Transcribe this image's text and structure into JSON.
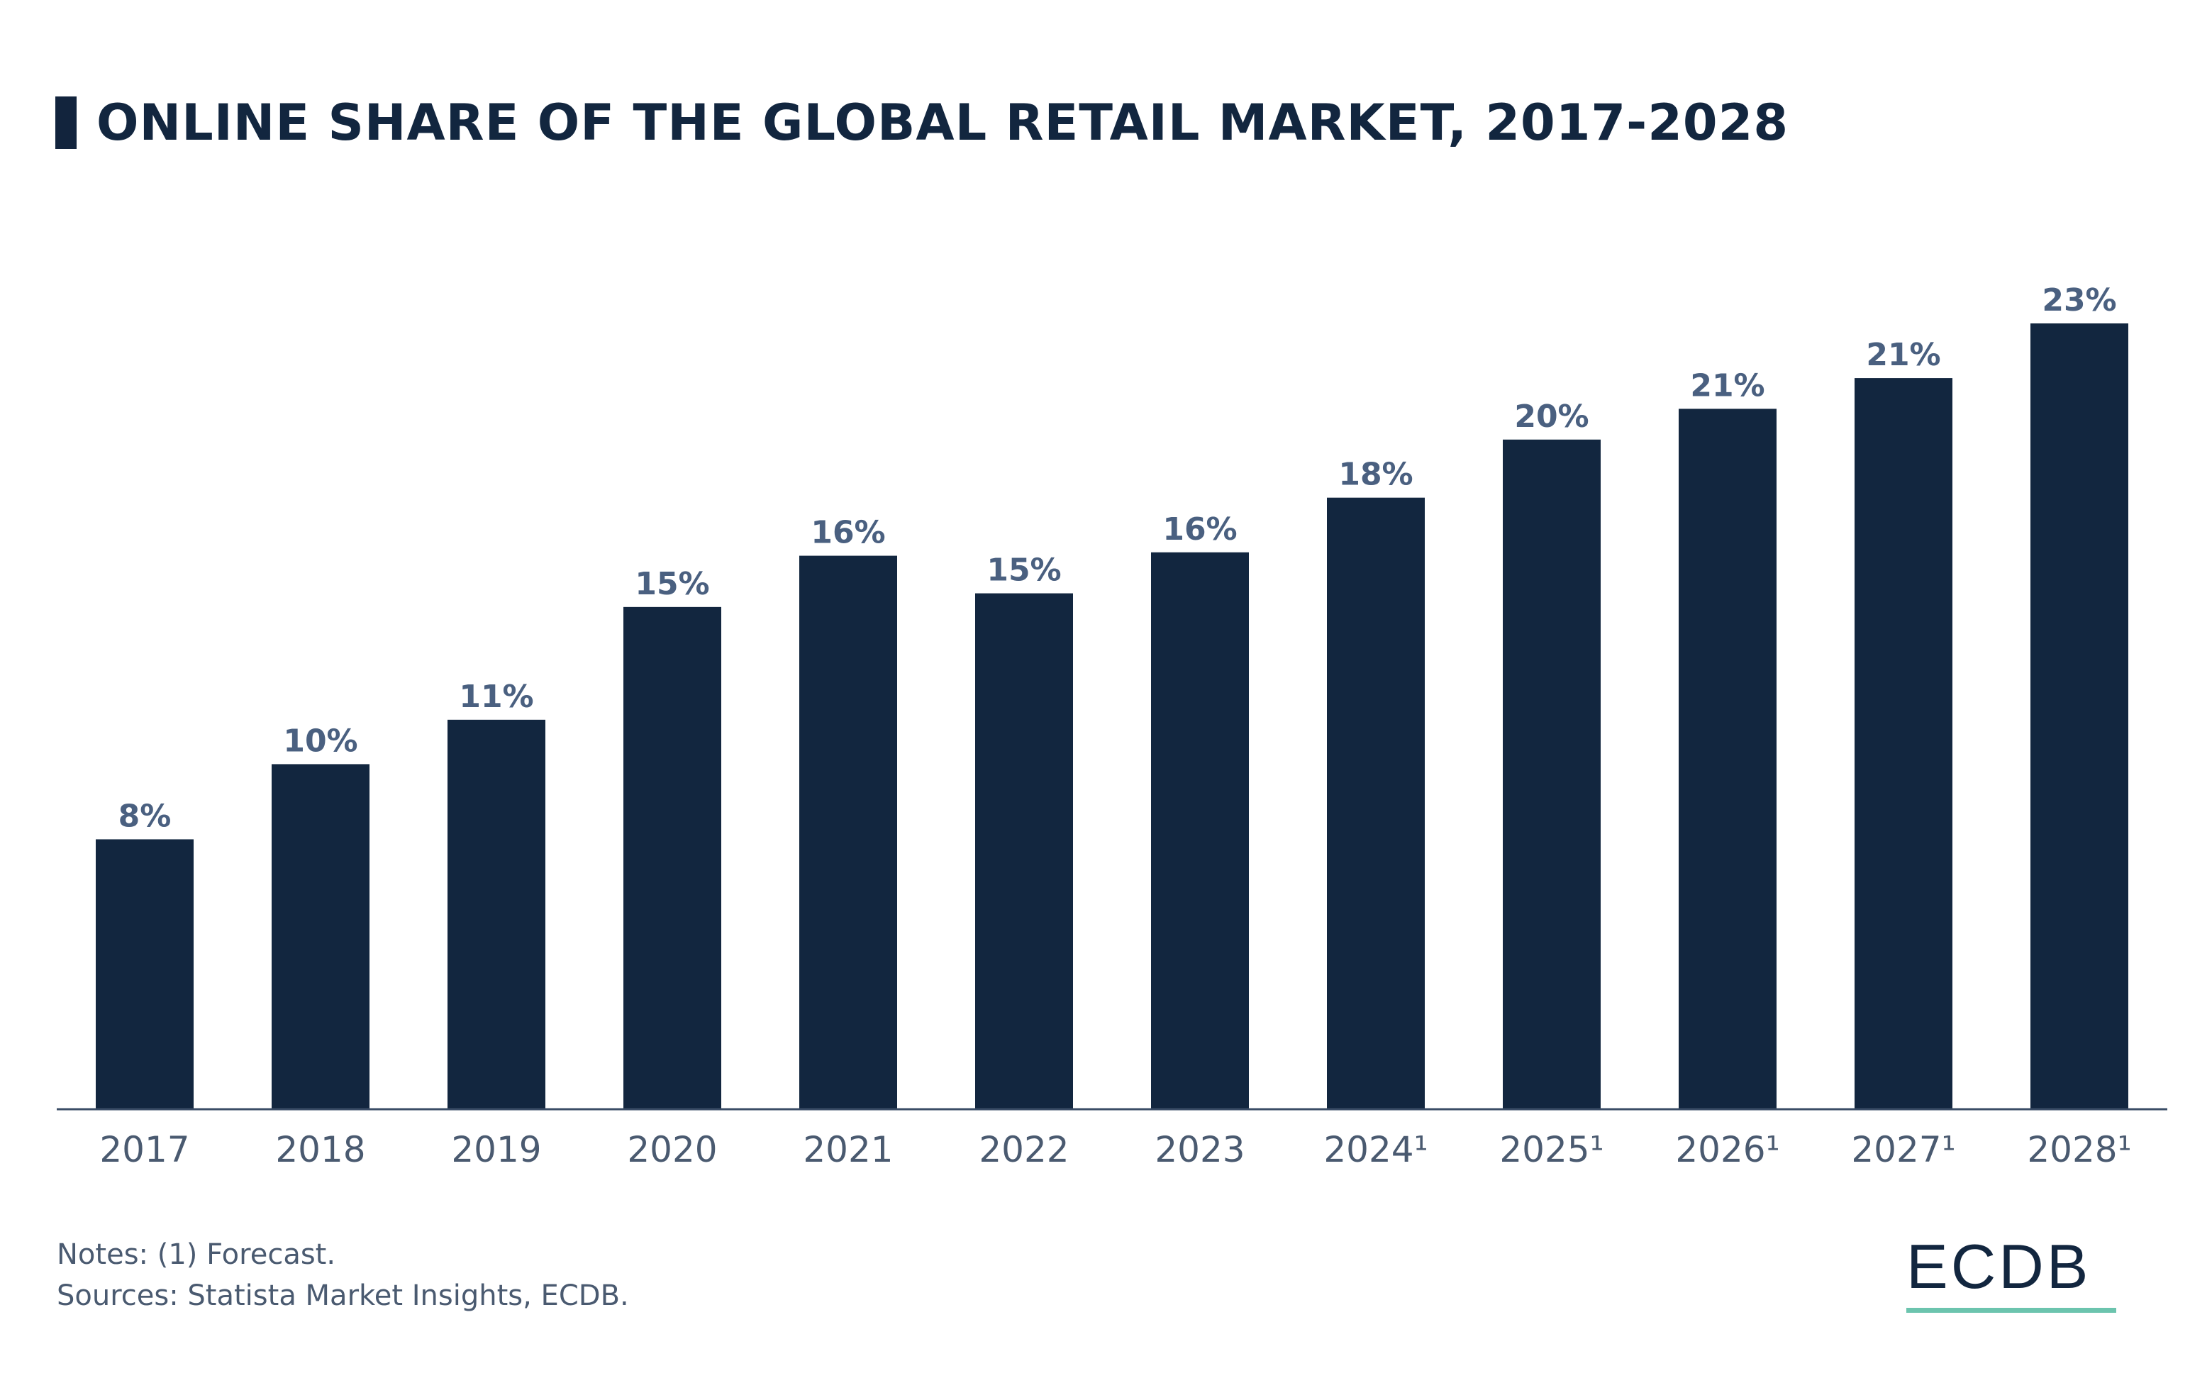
{
  "title": "ONLINE SHARE OF THE GLOBAL RETAIL MARKET, 2017-2028",
  "notes": "Notes: (1) Forecast.",
  "sources": "Sources: Statista Market Insights, ECDB.",
  "logo": "ECDB",
  "colors": {
    "bar": "#12263f",
    "value_label": "#4a6080",
    "axis_label": "#4a5a70",
    "logo_accent": "#6cc4ae"
  },
  "chart_data": {
    "type": "bar",
    "title": "ONLINE SHARE OF THE GLOBAL RETAIL MARKET, 2017-2028",
    "xlabel": "",
    "ylabel": "",
    "categories": [
      "2017",
      "2018",
      "2019",
      "2020",
      "2021",
      "2022",
      "2023",
      "2024¹",
      "2025¹",
      "2026¹",
      "2027¹",
      "2028¹"
    ],
    "values": [
      7.9,
      10.1,
      11.4,
      14.7,
      16.2,
      15.1,
      16.3,
      17.9,
      19.6,
      20.5,
      21.4,
      23.0
    ],
    "data_labels": [
      "8%",
      "10%",
      "11%",
      "15%",
      "16%",
      "15%",
      "16%",
      "18%",
      "20%",
      "21%",
      "21%",
      "23%"
    ],
    "ylim": [
      0,
      23
    ],
    "unit": "%",
    "grid": false,
    "legend": "none"
  }
}
